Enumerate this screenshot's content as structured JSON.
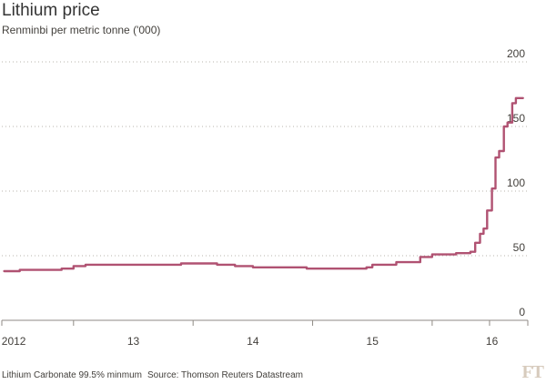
{
  "header": {
    "title": "Lithium price",
    "subtitle": "Renminbi per metric tonne ('000)"
  },
  "footer": {
    "note": "Lithium Carbonate 99.5% minmum",
    "source": "Source: Thomson Reuters Datastream"
  },
  "brand": {
    "logo_text": "FT"
  },
  "colors": {
    "line": "#b05272",
    "grid": "#b9b4ad",
    "axis": "#8f8a84",
    "text": "#43403c",
    "background": "#ffffff"
  },
  "chart_data": {
    "type": "line",
    "title": "Lithium price",
    "subtitle": "Renminbi per metric tonne ('000)",
    "xlabel": "",
    "ylabel": "",
    "ylim": [
      0,
      200
    ],
    "yticks": [
      0,
      50,
      100,
      150,
      200
    ],
    "ytick_labels": [
      "0",
      "50",
      "100",
      "150",
      "200"
    ],
    "xlim": [
      2011.9,
      2016.3
    ],
    "xticks": [
      2012.0,
      2013.0,
      2014.0,
      2015.0,
      2016.0
    ],
    "xtick_labels": [
      "2012",
      "13",
      "14",
      "15",
      "16"
    ],
    "grid": true,
    "series": [
      {
        "name": "",
        "x": [
          2011.92,
          2012.05,
          2012.2,
          2012.28,
          2012.4,
          2012.5,
          2012.6,
          2012.8,
          2013.0,
          2013.2,
          2013.3,
          2013.4,
          2013.55,
          2013.7,
          2013.85,
          2014.0,
          2014.1,
          2014.25,
          2014.45,
          2014.6,
          2014.7,
          2014.8,
          2014.95,
          2015.0,
          2015.2,
          2015.4,
          2015.5,
          2015.6,
          2015.7,
          2015.78,
          2015.82,
          2015.86,
          2015.9,
          2015.93,
          2015.96,
          2016.0,
          2016.03,
          2016.06,
          2016.08,
          2016.1,
          2016.13,
          2016.15,
          2016.17,
          2016.2,
          2016.26
        ],
        "values": [
          38,
          39,
          39,
          39,
          40,
          42,
          43,
          43,
          43,
          43,
          43,
          44,
          44,
          43,
          42,
          41,
          41,
          41,
          40,
          40,
          40,
          40,
          41,
          43,
          45,
          49,
          51,
          51,
          52,
          52,
          53,
          60,
          67,
          71,
          85,
          102,
          126,
          131,
          131,
          150,
          153,
          153,
          168,
          172,
          172
        ]
      }
    ]
  }
}
